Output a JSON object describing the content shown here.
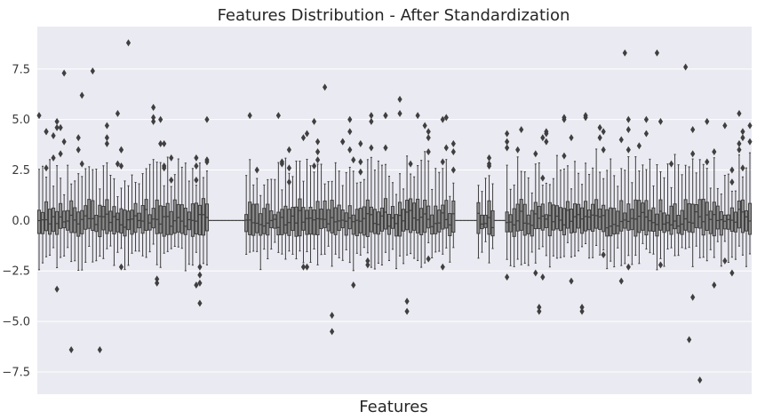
{
  "chart_data": {
    "type": "box",
    "title": "Features Distribution - After Standardization",
    "xlabel": "Features",
    "ylabel": "",
    "ylim": [
      -8.6,
      9.6
    ],
    "yticks": [
      -7.5,
      -5.0,
      -2.5,
      0.0,
      2.5,
      5.0,
      7.5
    ],
    "ytick_labels": [
      "−7.5",
      "−5.0",
      "−2.5",
      "0.0",
      "2.5",
      "5.0",
      "7.5"
    ],
    "grid": true,
    "legend": "none",
    "box_count": 200,
    "colors": {
      "background": "#eaeaf2",
      "grid": "#ffffff",
      "box_fill": "#8c8c8c",
      "box_edge": "#3f3f3f",
      "flier": "#3f3f3f"
    },
    "representative_outliers": [
      {
        "box": 0,
        "values": [
          5.2
        ]
      },
      {
        "box": 7,
        "values": [
          7.3,
          3.9
        ]
      },
      {
        "box": 9,
        "values": [
          -6.4
        ]
      },
      {
        "box": 12,
        "values": [
          6.2,
          2.8
        ]
      },
      {
        "box": 15,
        "values": [
          7.4
        ]
      },
      {
        "box": 17,
        "values": [
          -6.4
        ]
      },
      {
        "box": 22,
        "values": [
          5.3,
          2.8
        ]
      },
      {
        "box": 25,
        "values": [
          8.8
        ]
      },
      {
        "box": 33,
        "values": [
          -2.9,
          -3.1
        ]
      },
      {
        "box": 45,
        "values": [
          -2.3,
          -2.7,
          -3.1,
          -4.1
        ]
      },
      {
        "box": 50,
        "values": [
          5.3
        ]
      },
      {
        "box": 67,
        "values": [
          5.2
        ]
      },
      {
        "box": 70,
        "values": [
          3.5,
          2.6,
          1.9
        ]
      },
      {
        "box": 80,
        "values": [
          6.6
        ]
      },
      {
        "box": 82,
        "values": [
          -4.7,
          -5.5
        ]
      },
      {
        "box": 92,
        "values": [
          -2.2,
          -2.0
        ]
      },
      {
        "box": 101,
        "values": [
          6.0,
          5.3
        ]
      },
      {
        "box": 103,
        "values": [
          -4.0,
          -4.5
        ]
      },
      {
        "box": 140,
        "values": [
          -4.3,
          -4.5
        ]
      },
      {
        "box": 152,
        "values": [
          -4.3,
          -4.5
        ]
      },
      {
        "box": 164,
        "values": [
          8.3
        ]
      },
      {
        "box": 173,
        "values": [
          8.3
        ]
      },
      {
        "box": 181,
        "values": [
          7.6
        ]
      },
      {
        "box": 182,
        "values": [
          -5.9
        ]
      },
      {
        "box": 185,
        "values": [
          -7.9
        ]
      }
    ]
  }
}
